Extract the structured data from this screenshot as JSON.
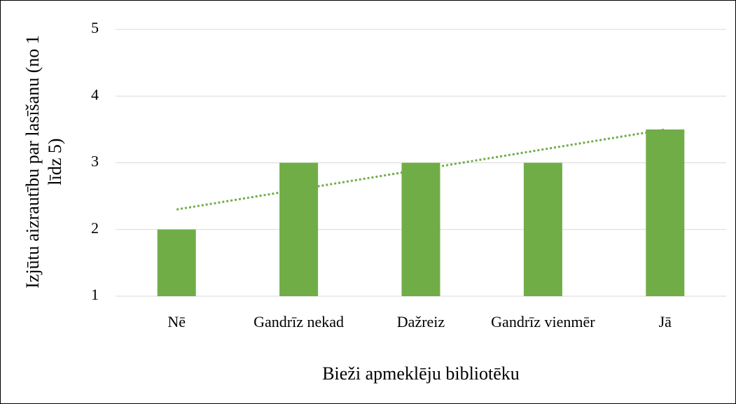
{
  "chart_data": {
    "type": "bar",
    "x_label": "Bieži apmeklēju bibliotēku",
    "y_label": "Izjūtu aizrautību par lasīšanu (no 1 līdz 5)",
    "categories": [
      "Nē",
      "Gandrīz nekad",
      "Dažreiz",
      "Gandrīz vienmēr",
      "Jā"
    ],
    "values": [
      2,
      3,
      3,
      3,
      3.5
    ],
    "color": "#70ad47",
    "ylim": [
      1,
      5
    ],
    "yticks": [
      1,
      2,
      3,
      4,
      5
    ],
    "grid": true,
    "trendline": "linear"
  }
}
